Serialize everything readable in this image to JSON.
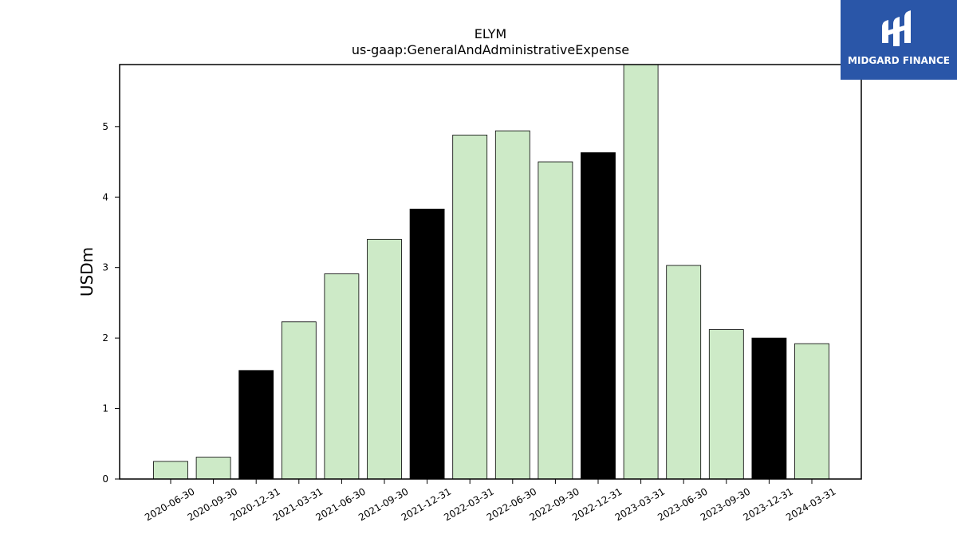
{
  "chart_data": {
    "type": "bar",
    "title": "ELYM",
    "subtitle": "us-gaap:GeneralAndAdministrativeExpense",
    "xlabel": "",
    "ylabel": "USDm",
    "ylim": [
      0,
      5.88
    ],
    "yticks": [
      0,
      1,
      2,
      3,
      4,
      5
    ],
    "grid": false,
    "categories": [
      "2020-06-30",
      "2020-09-30",
      "2020-12-31",
      "2021-03-31",
      "2021-06-30",
      "2021-09-30",
      "2021-12-31",
      "2022-03-31",
      "2022-06-30",
      "2022-09-30",
      "2022-12-31",
      "2023-03-31",
      "2023-06-30",
      "2023-09-30",
      "2023-12-31",
      "2024-03-31"
    ],
    "values": [
      0.25,
      0.31,
      1.54,
      2.23,
      2.91,
      3.4,
      3.83,
      4.88,
      4.94,
      4.5,
      4.63,
      5.9,
      3.03,
      2.12,
      2.0,
      1.92
    ],
    "fiscal_year_end": [
      false,
      false,
      true,
      false,
      false,
      false,
      true,
      false,
      false,
      false,
      true,
      false,
      false,
      false,
      true,
      false
    ],
    "colors": {
      "quarter": "#cdeac7",
      "year_end": "#000000",
      "edge": "#000000"
    }
  },
  "logo": {
    "text": "MIDGARD FINANCE",
    "background": "#2a56a8"
  }
}
